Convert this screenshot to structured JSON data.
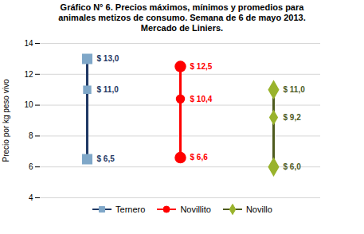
{
  "chart_data": {
    "type": "range",
    "title": "Gráfico N° 6. Precios máximos, mínimos y promedios para\nanimales metizos de consumo. Semana de 6 de mayo 2013.\nMercado de Liniers.",
    "ylabel": "Precio por kg peso vivo",
    "ylim": [
      4,
      14
    ],
    "yticks": [
      4,
      6,
      8,
      10,
      12,
      14
    ],
    "grid": true,
    "legend": "bottom",
    "data_labels": true,
    "tick_labels": "y",
    "series": [
      {
        "name": "Ternero",
        "color": "#1F3864",
        "colors": [
          "#7FA7C8",
          "#7FA7C8",
          "#7FA7C8"
        ],
        "marker": "square",
        "values": [
          13.0,
          11.0,
          6.5
        ],
        "value_labels": [
          "$ 13,0",
          "$ 11,0",
          "$ 6,5"
        ]
      },
      {
        "name": "Novillito",
        "color": "#FF0000",
        "colors": [
          "#FF0000",
          "#FF0000",
          "#FF0000"
        ],
        "marker": "circle",
        "values": [
          12.5,
          10.4,
          6.6
        ],
        "value_labels": [
          "$ 12,5",
          "$ 10,4",
          "$ 6,6"
        ]
      },
      {
        "name": "Novillo",
        "color": "#4E5B1E",
        "colors": [
          "#99B32C",
          "#99B32C",
          "#99B32C"
        ],
        "marker": "diamond",
        "values": [
          11.0,
          9.2,
          6.0
        ],
        "value_labels": [
          "$ 11,0",
          "$ 9,2",
          "$ 6,0"
        ]
      }
    ]
  }
}
